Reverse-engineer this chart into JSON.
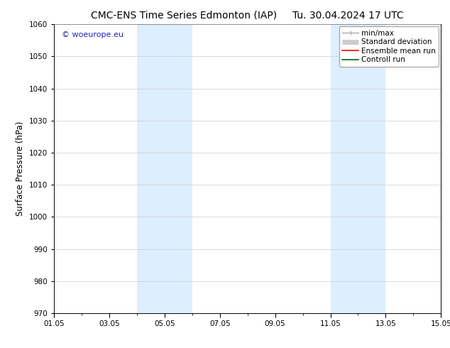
{
  "title_left": "CMC-ENS Time Series Edmonton (IAP)",
  "title_right": "Tu. 30.04.2024 17 UTC",
  "ylabel": "Surface Pressure (hPa)",
  "ylim": [
    970,
    1060
  ],
  "yticks": [
    970,
    980,
    990,
    1000,
    1010,
    1020,
    1030,
    1040,
    1050,
    1060
  ],
  "xlim_start": 0,
  "xlim_end": 14,
  "xtick_labels": [
    "01.05",
    "03.05",
    "05.05",
    "07.05",
    "09.05",
    "11.05",
    "13.05",
    "15.05"
  ],
  "xtick_positions": [
    0,
    2,
    4,
    6,
    8,
    10,
    12,
    14
  ],
  "shaded_bands": [
    {
      "x_start": 3.0,
      "x_end": 4.0
    },
    {
      "x_start": 4.0,
      "x_end": 5.0
    },
    {
      "x_start": 10.0,
      "x_end": 11.0
    },
    {
      "x_start": 11.0,
      "x_end": 12.0
    }
  ],
  "shaded_color": "#ddeeff",
  "watermark_text": "© woeurope.eu",
  "watermark_color": "#2222bb",
  "legend_items": [
    {
      "label": "min/max",
      "color": "#aaaaaa",
      "lw": 1.0
    },
    {
      "label": "Standard deviation",
      "color": "#cccccc",
      "lw": 5
    },
    {
      "label": "Ensemble mean run",
      "color": "#ff0000",
      "lw": 1.2
    },
    {
      "label": "Controll run",
      "color": "#006600",
      "lw": 1.2
    }
  ],
  "bg_color": "#ffffff",
  "grid_color": "#cccccc",
  "title_fontsize": 10,
  "axis_fontsize": 8.5,
  "tick_fontsize": 7.5,
  "legend_fontsize": 7.5
}
